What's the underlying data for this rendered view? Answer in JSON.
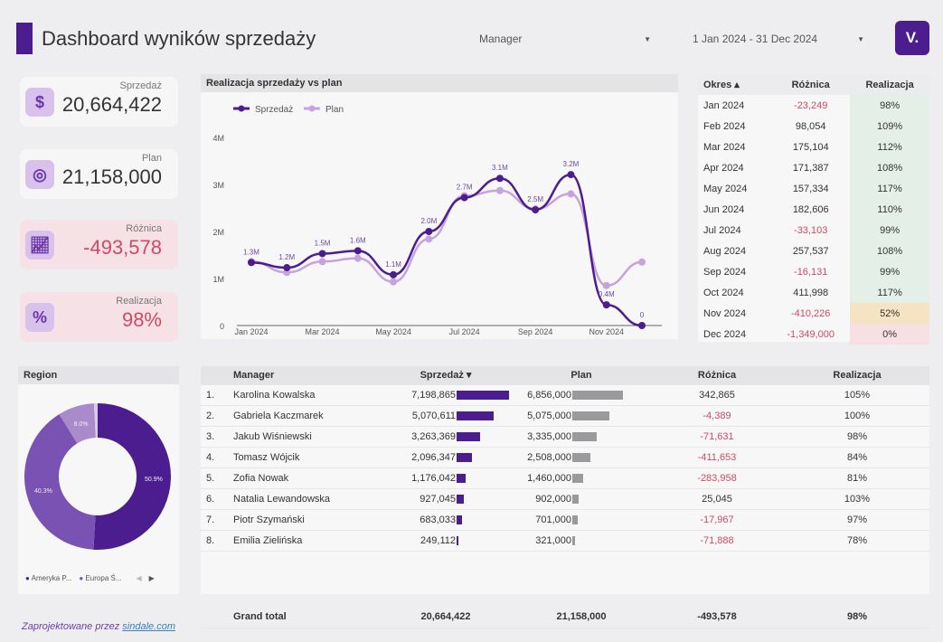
{
  "header": {
    "title": "Dashboard wyników sprzedaży",
    "manager_filter": "Manager",
    "date_filter": "1 Jan 2024 - 31 Dec 2024",
    "logo": "V."
  },
  "kpis": [
    {
      "label": "Sprzedaż",
      "value": "20,664,422",
      "icon": "dollar-icon"
    },
    {
      "label": "Plan",
      "value": "21,158,000",
      "icon": "target-icon"
    },
    {
      "label": "Różnica",
      "value": "-493,578",
      "icon": "chart-up-icon"
    },
    {
      "label": "Realizacja",
      "value": "98%",
      "icon": "percent-icon"
    }
  ],
  "chart_data": {
    "type": "line",
    "title": "Realizacja sprzedaży vs plan",
    "categories": [
      "Jan 2024",
      "Feb 2024",
      "Mar 2024",
      "Apr 2024",
      "May 2024",
      "Jun 2024",
      "Jul 2024",
      "Aug 2024",
      "Sep 2024",
      "Oct 2024",
      "Nov 2024",
      "Dec 2024"
    ],
    "yticks": [
      "0",
      "1M",
      "2M",
      "3M",
      "4M"
    ],
    "ylim": [
      0,
      4000000
    ],
    "series": [
      {
        "name": "Sprzedaż",
        "color": "#4b1d8f",
        "values": [
          1340000,
          1230000,
          1530000,
          1590000,
          1080000,
          2000000,
          2720000,
          3130000,
          2460000,
          3210000,
          440000,
          0
        ],
        "labels": [
          "1.3M",
          "1.2M",
          "1.5M",
          "1.6M",
          "1.1M",
          "2.0M",
          "2.7M",
          "3.1M",
          "2.5M",
          "3.2M",
          "0.4M",
          "0"
        ]
      },
      {
        "name": "Plan",
        "color": "#c7a3de",
        "values": [
          1360000,
          1130000,
          1360000,
          1430000,
          930000,
          1840000,
          2760000,
          2870000,
          2480000,
          2800000,
          850000,
          1350000
        ]
      }
    ]
  },
  "months_table": {
    "headers": [
      "Okres",
      "Różnica",
      "Realizacja"
    ],
    "rows": [
      [
        "Jan 2024",
        "-23,249",
        "98%"
      ],
      [
        "Feb 2024",
        "98,054",
        "109%"
      ],
      [
        "Mar 2024",
        "175,104",
        "112%"
      ],
      [
        "Apr 2024",
        "171,387",
        "108%"
      ],
      [
        "May 2024",
        "157,334",
        "117%"
      ],
      [
        "Jun 2024",
        "182,606",
        "110%"
      ],
      [
        "Jul 2024",
        "-33,103",
        "99%"
      ],
      [
        "Aug 2024",
        "257,537",
        "108%"
      ],
      [
        "Sep 2024",
        "-16,131",
        "99%"
      ],
      [
        "Oct 2024",
        "411,998",
        "117%"
      ],
      [
        "Nov 2024",
        "-410,226",
        "52%"
      ],
      [
        "Dec 2024",
        "-1,349,000",
        "0%"
      ]
    ]
  },
  "region": {
    "title": "Region",
    "slices": [
      {
        "label": "50.9%",
        "value": 50.9,
        "color": "#4b1d8f"
      },
      {
        "label": "40.3%",
        "value": 40.3,
        "color": "#7a52b3"
      },
      {
        "label": "8.0%",
        "value": 8.0,
        "color": "#a98acb"
      },
      {
        "label": "",
        "value": 0.8,
        "color": "#d9c9ea"
      }
    ],
    "legend": [
      "Ameryka P...",
      "Europa Ś..."
    ]
  },
  "managers": {
    "headers": [
      "Manager",
      "Sprzedaż",
      "Plan",
      "Różnica",
      "Realizacja"
    ],
    "rows": [
      {
        "n": "1.",
        "name": "Karolina Kowalska",
        "sales": "7,198,865",
        "sv": 7198865,
        "plan": "6,856,000",
        "pv": 6856000,
        "diff": "342,865",
        "real": "105%"
      },
      {
        "n": "2.",
        "name": "Gabriela Kaczmarek",
        "sales": "5,070,611",
        "sv": 5070611,
        "plan": "5,075,000",
        "pv": 5075000,
        "diff": "-4,389",
        "real": "100%"
      },
      {
        "n": "3.",
        "name": "Jakub Wiśniewski",
        "sales": "3,263,369",
        "sv": 3263369,
        "plan": "3,335,000",
        "pv": 3335000,
        "diff": "-71,631",
        "real": "98%"
      },
      {
        "n": "4.",
        "name": "Tomasz Wójcik",
        "sales": "2,096,347",
        "sv": 2096347,
        "plan": "2,508,000",
        "pv": 2508000,
        "diff": "-411,653",
        "real": "84%"
      },
      {
        "n": "5.",
        "name": "Zofia Nowak",
        "sales": "1,176,042",
        "sv": 1176042,
        "plan": "1,460,000",
        "pv": 1460000,
        "diff": "-283,958",
        "real": "81%"
      },
      {
        "n": "6.",
        "name": "Natalia Lewandowska",
        "sales": "927,045",
        "sv": 927045,
        "plan": "902,000",
        "pv": 902000,
        "diff": "25,045",
        "real": "103%"
      },
      {
        "n": "7.",
        "name": "Piotr Szymański",
        "sales": "683,033",
        "sv": 683033,
        "plan": "701,000",
        "pv": 701000,
        "diff": "-17,967",
        "real": "97%"
      },
      {
        "n": "8.",
        "name": "Emilia Zielińska",
        "sales": "249,112",
        "sv": 249112,
        "plan": "321,000",
        "pv": 321000,
        "diff": "-71,888",
        "real": "78%"
      }
    ],
    "total": {
      "label": "Grand total",
      "sales": "20,664,422",
      "plan": "21,158,000",
      "diff": "-493,578",
      "real": "98%"
    }
  },
  "footer": {
    "text": "Zaprojektowane przez",
    "link": "sindale.com"
  }
}
